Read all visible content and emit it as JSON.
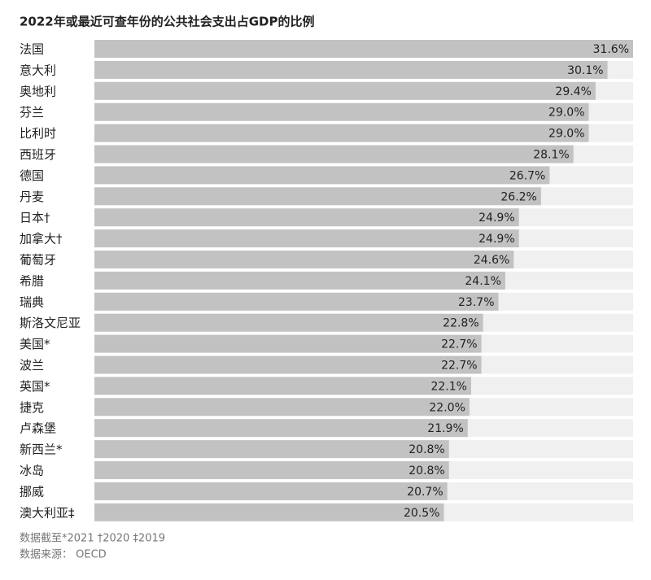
{
  "chart_data": {
    "type": "bar",
    "orientation": "horizontal",
    "title": "2022年或最近可查年份的公共社会支出占GDP的比例",
    "categories": [
      "法国",
      "意大利",
      "奥地利",
      "芬兰",
      "比利时",
      "西班牙",
      "德国",
      "丹麦",
      "日本†",
      "加拿大†",
      "葡萄牙",
      "希腊",
      "瑞典",
      "斯洛文尼亚",
      "美国*",
      "波兰",
      "英国*",
      "捷克",
      "卢森堡",
      "新西兰*",
      "冰岛",
      "挪威",
      "澳大利亚‡"
    ],
    "values": [
      31.6,
      30.1,
      29.4,
      29.0,
      29.0,
      28.1,
      26.7,
      26.2,
      24.9,
      24.9,
      24.6,
      24.1,
      23.7,
      22.8,
      22.7,
      22.7,
      22.1,
      22.0,
      21.9,
      20.8,
      20.8,
      20.7,
      20.5
    ],
    "value_labels": [
      "31.6%",
      "30.1%",
      "29.4%",
      "29.0%",
      "29.0%",
      "28.1%",
      "26.7%",
      "26.2%",
      "24.9%",
      "24.9%",
      "24.6%",
      "24.1%",
      "23.7%",
      "22.8%",
      "22.7%",
      "22.7%",
      "22.1%",
      "22.0%",
      "21.9%",
      "20.8%",
      "20.8%",
      "20.7%",
      "20.5%"
    ],
    "color": "#c2c2c2",
    "notes": [
      "数据截至*2021 †2020 ‡2019",
      "数据来源： OECD"
    ]
  }
}
